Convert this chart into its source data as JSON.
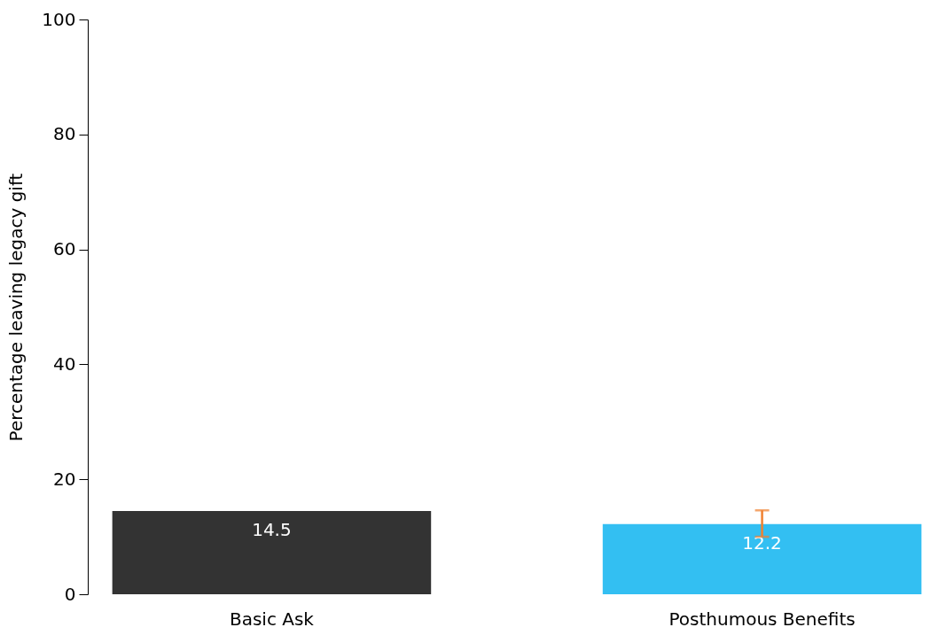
{
  "chart_data": {
    "type": "bar",
    "ylabel": "Percentage leaving legacy gift",
    "categories": [
      "Basic Ask",
      "Posthumous Benefits"
    ],
    "values": [
      14.5,
      12.2
    ],
    "colors": [
      "#333333",
      "#33bff2"
    ],
    "errors": [
      null,
      [
        10.0,
        14.6
      ]
    ],
    "ylim": [
      0,
      100
    ],
    "yticks": [
      0,
      20,
      40,
      60,
      80,
      100
    ],
    "data_labels": true,
    "grid": false
  }
}
